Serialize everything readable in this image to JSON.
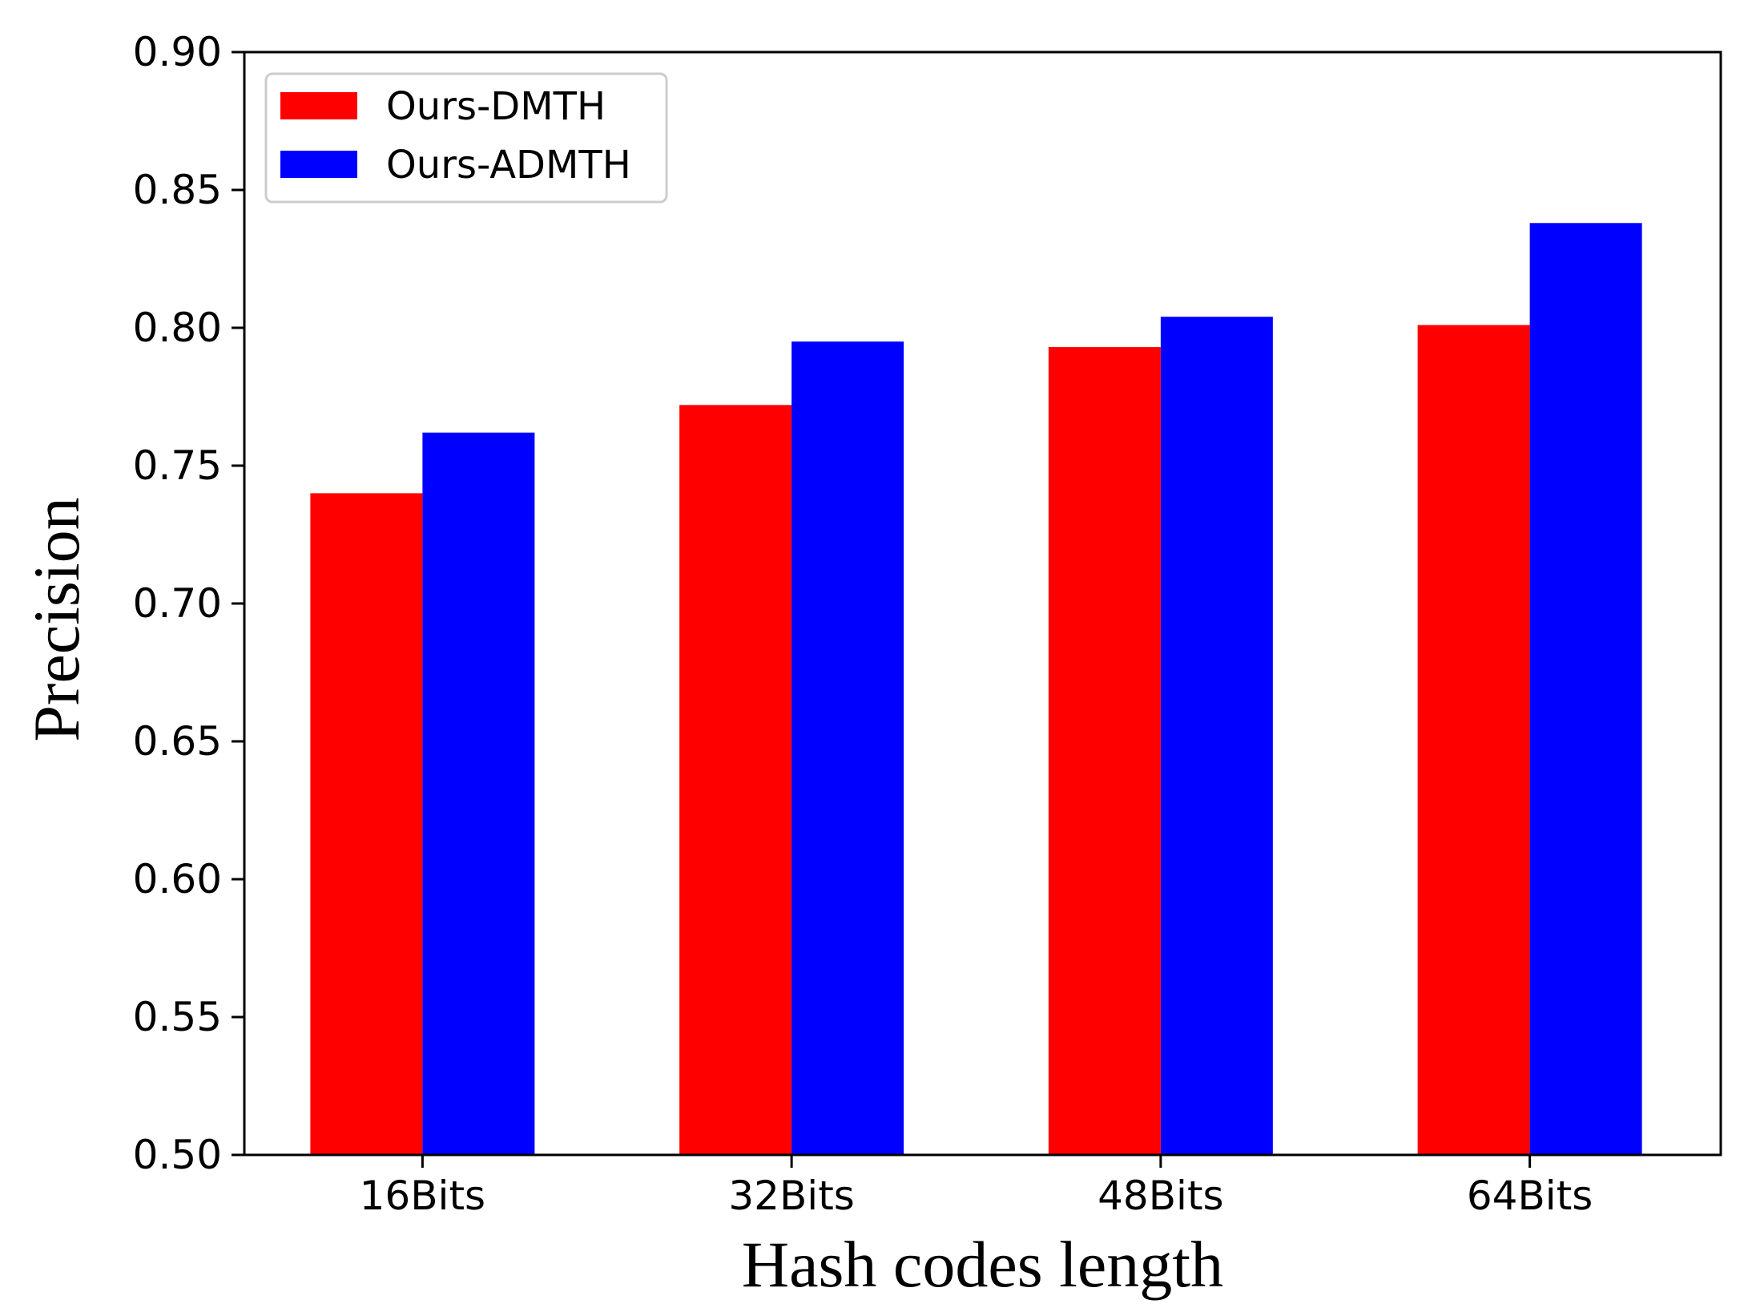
{
  "chart_data": {
    "type": "bar",
    "title": "",
    "xlabel": "Hash codes length",
    "ylabel": "Precision",
    "categories": [
      "16Bits",
      "32Bits",
      "48Bits",
      "64Bits"
    ],
    "ylim": [
      0.5,
      0.9
    ],
    "yticks": [
      "0.50",
      "0.55",
      "0.60",
      "0.65",
      "0.70",
      "0.75",
      "0.80",
      "0.85",
      "0.90"
    ],
    "grid": false,
    "legend_position": "top-left",
    "series": [
      {
        "name": "Ours-DMTH",
        "color": "#ff0000",
        "values": [
          0.74,
          0.772,
          0.793,
          0.801
        ]
      },
      {
        "name": "Ours-ADMTH",
        "color": "#0000ff",
        "values": [
          0.762,
          0.795,
          0.804,
          0.838
        ]
      }
    ]
  }
}
